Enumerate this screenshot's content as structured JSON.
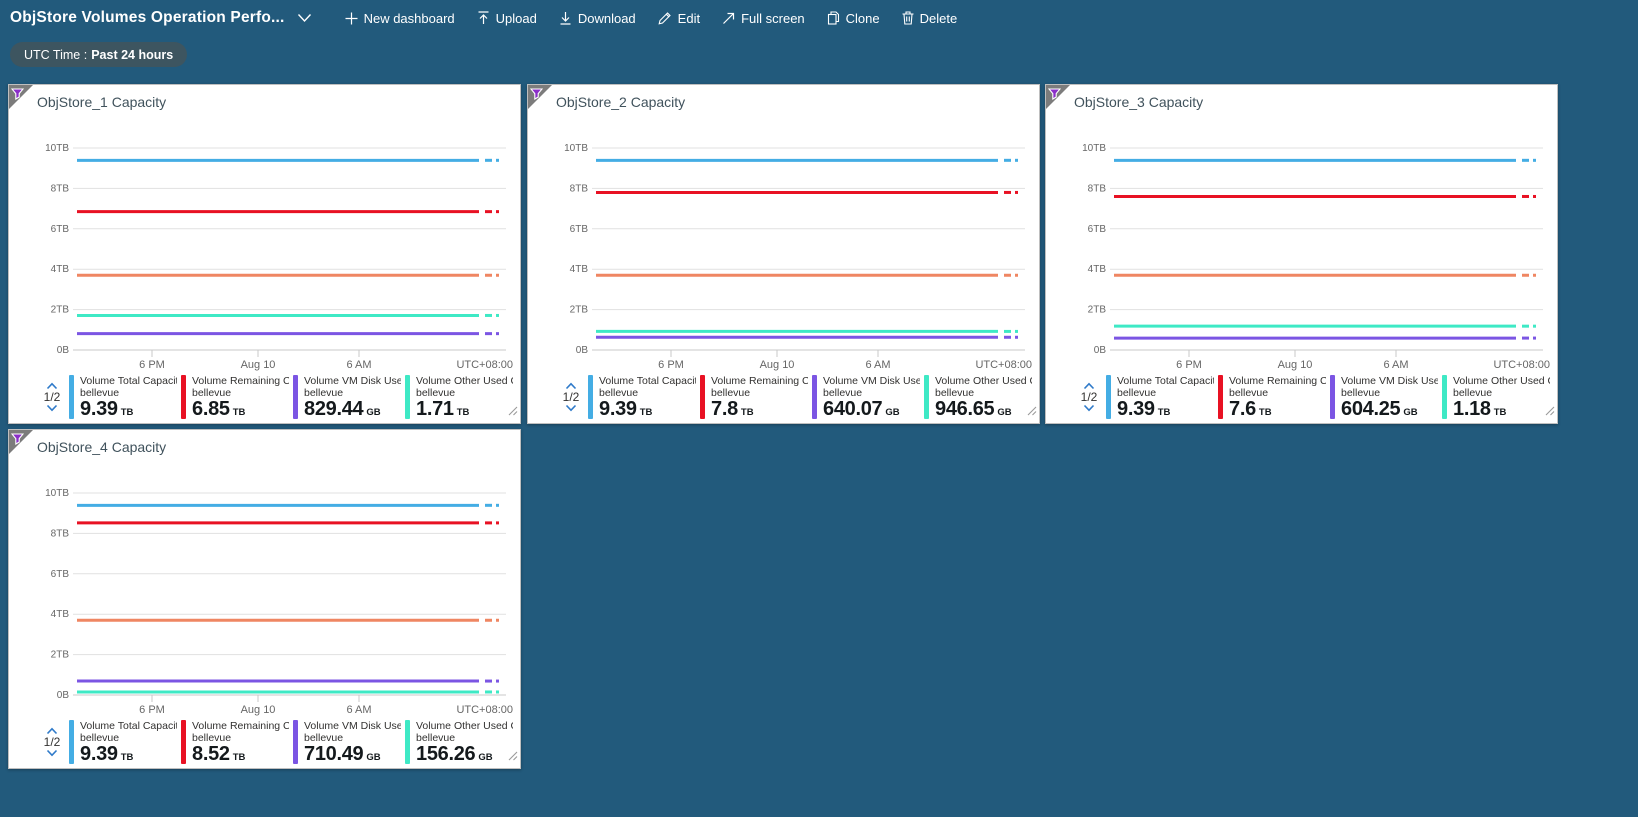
{
  "toolbar": {
    "title": "ObjStore Volumes Operation Perfo...",
    "buttons": [
      {
        "label": "New dashboard",
        "icon": "plus-icon"
      },
      {
        "label": "Upload",
        "icon": "upload-icon"
      },
      {
        "label": "Download",
        "icon": "download-icon"
      },
      {
        "label": "Edit",
        "icon": "edit-icon"
      },
      {
        "label": "Full screen",
        "icon": "fullscreen-icon"
      },
      {
        "label": "Clone",
        "icon": "clone-icon"
      },
      {
        "label": "Delete",
        "icon": "delete-icon"
      }
    ]
  },
  "filter_pill": {
    "prefix": "UTC Time :",
    "value": "Past 24 hours"
  },
  "colors": {
    "background": "#225a7c",
    "pill": "#3d5560",
    "blue": "#44ade4",
    "red": "#e81123",
    "purple": "#7b55e3",
    "teal": "#3ee9c5",
    "orange": "#ef8662",
    "pager_chevron": "#2f7ac9",
    "grid": "#e1e1e1",
    "axis": "#c9c9c9",
    "axis_text": "#666666"
  },
  "chart_axis": {
    "y_ticks": [
      "10TB",
      "8TB",
      "6TB",
      "4TB",
      "2TB",
      "0B"
    ],
    "y_max_tb": 10,
    "x_ticks": [
      "6 PM",
      "Aug 10",
      "6 AM"
    ],
    "x_right_label": "UTC+08:00"
  },
  "chart_data": [
    {
      "type": "line",
      "title": "ObjStore_1 Capacity",
      "pagination": "1/2",
      "ylim": [
        "0B",
        "10TB"
      ],
      "series": [
        {
          "label": "Volume Total Capacit...",
          "sub": "bellevue",
          "value": "9.39",
          "unit": "TB",
          "value_tb": 9.39,
          "color_key": "blue",
          "in_legend": true
        },
        {
          "label": "Volume Remaining Cap...",
          "sub": "bellevue",
          "value": "6.85",
          "unit": "TB",
          "value_tb": 6.85,
          "color_key": "red",
          "in_legend": true
        },
        {
          "label": "Volume VM Disk Used ...",
          "sub": "bellevue",
          "value": "829.44",
          "unit": "GB",
          "value_tb": 0.81,
          "color_key": "purple",
          "in_legend": true
        },
        {
          "label": "Volume Other Used Ca...",
          "sub": "bellevue",
          "value": "1.71",
          "unit": "TB",
          "value_tb": 1.71,
          "color_key": "teal",
          "in_legend": true
        },
        {
          "label": "",
          "sub": "",
          "value": "",
          "unit": "",
          "value_tb": 3.7,
          "color_key": "orange",
          "in_legend": false
        }
      ]
    },
    {
      "type": "line",
      "title": "ObjStore_2 Capacity",
      "pagination": "1/2",
      "ylim": [
        "0B",
        "10TB"
      ],
      "series": [
        {
          "label": "Volume Total Capacit...",
          "sub": "bellevue",
          "value": "9.39",
          "unit": "TB",
          "value_tb": 9.39,
          "color_key": "blue",
          "in_legend": true
        },
        {
          "label": "Volume Remaining Cap...",
          "sub": "bellevue",
          "value": "7.8",
          "unit": "TB",
          "value_tb": 7.8,
          "color_key": "red",
          "in_legend": true
        },
        {
          "label": "Volume VM Disk Used ...",
          "sub": "bellevue",
          "value": "640.07",
          "unit": "GB",
          "value_tb": 0.63,
          "color_key": "purple",
          "in_legend": true
        },
        {
          "label": "Volume Other Used Ca...",
          "sub": "bellevue",
          "value": "946.65",
          "unit": "GB",
          "value_tb": 0.92,
          "color_key": "teal",
          "in_legend": true
        },
        {
          "label": "",
          "sub": "",
          "value": "",
          "unit": "",
          "value_tb": 3.7,
          "color_key": "orange",
          "in_legend": false
        }
      ]
    },
    {
      "type": "line",
      "title": "ObjStore_3 Capacity",
      "pagination": "1/2",
      "ylim": [
        "0B",
        "10TB"
      ],
      "series": [
        {
          "label": "Volume Total Capacit...",
          "sub": "bellevue",
          "value": "9.39",
          "unit": "TB",
          "value_tb": 9.39,
          "color_key": "blue",
          "in_legend": true
        },
        {
          "label": "Volume Remaining Cap...",
          "sub": "bellevue",
          "value": "7.6",
          "unit": "TB",
          "value_tb": 7.6,
          "color_key": "red",
          "in_legend": true
        },
        {
          "label": "Volume VM Disk Used ...",
          "sub": "bellevue",
          "value": "604.25",
          "unit": "GB",
          "value_tb": 0.59,
          "color_key": "purple",
          "in_legend": true
        },
        {
          "label": "Volume Other Used Ca...",
          "sub": "bellevue",
          "value": "1.18",
          "unit": "TB",
          "value_tb": 1.18,
          "color_key": "teal",
          "in_legend": true
        },
        {
          "label": "",
          "sub": "",
          "value": "",
          "unit": "",
          "value_tb": 3.7,
          "color_key": "orange",
          "in_legend": false
        }
      ]
    },
    {
      "type": "line",
      "title": "ObjStore_4 Capacity",
      "pagination": "1/2",
      "ylim": [
        "0B",
        "10TB"
      ],
      "series": [
        {
          "label": "Volume Total Capacit...",
          "sub": "bellevue",
          "value": "9.39",
          "unit": "TB",
          "value_tb": 9.39,
          "color_key": "blue",
          "in_legend": true
        },
        {
          "label": "Volume Remaining Cap...",
          "sub": "bellevue",
          "value": "8.52",
          "unit": "TB",
          "value_tb": 8.52,
          "color_key": "red",
          "in_legend": true
        },
        {
          "label": "Volume VM Disk Used ...",
          "sub": "bellevue",
          "value": "710.49",
          "unit": "GB",
          "value_tb": 0.69,
          "color_key": "purple",
          "in_legend": true
        },
        {
          "label": "Volume Other Used Ca...",
          "sub": "bellevue",
          "value": "156.26",
          "unit": "GB",
          "value_tb": 0.15,
          "color_key": "teal",
          "in_legend": true
        },
        {
          "label": "",
          "sub": "",
          "value": "",
          "unit": "",
          "value_tb": 3.7,
          "color_key": "orange",
          "in_legend": false
        }
      ]
    }
  ]
}
